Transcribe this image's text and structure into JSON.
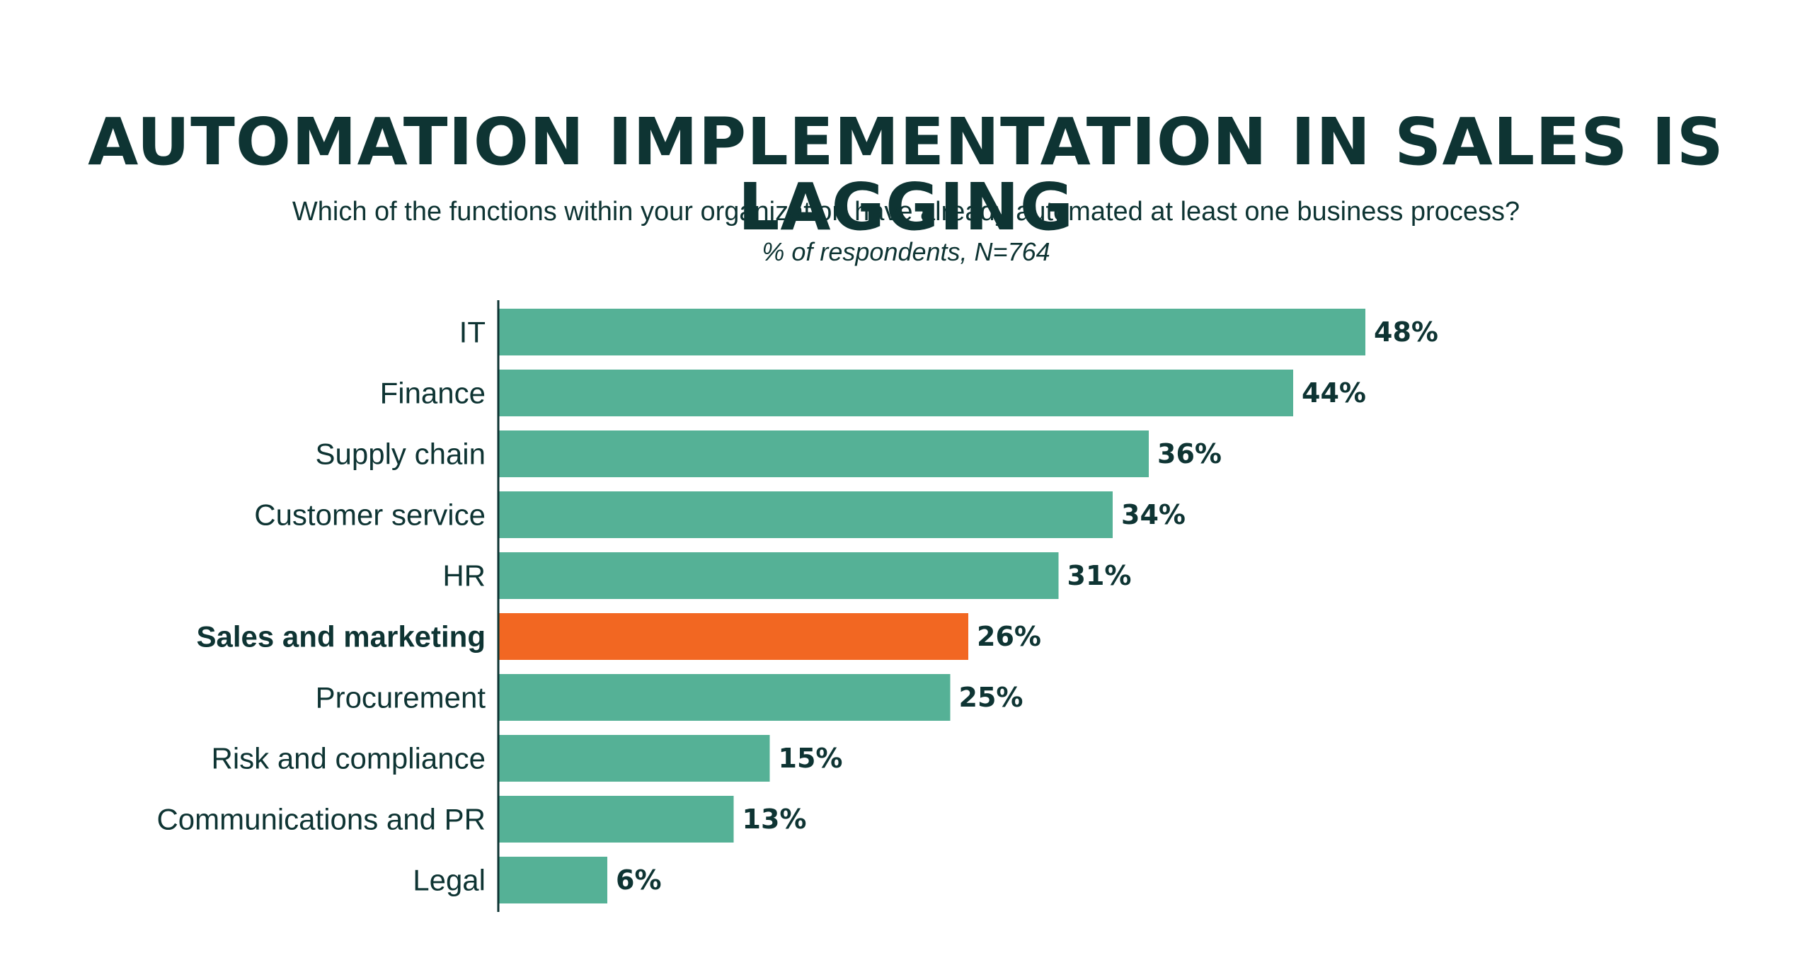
{
  "chart_data": {
    "type": "bar",
    "orientation": "horizontal",
    "title": "AUTOMATION IMPLEMENTATION IN SALES IS LAGGING",
    "subtitle": "Which of the functions within your organization have already automated at least one business process?",
    "note": "% of respondents, N=764",
    "categories": [
      "IT",
      "Finance",
      "Supply chain",
      "Customer service",
      "HR",
      "Sales and marketing",
      "Procurement",
      "Risk and compliance",
      "Communications and PR",
      "Legal"
    ],
    "values": [
      48,
      44,
      36,
      34,
      31,
      26,
      25,
      15,
      13,
      6
    ],
    "value_labels": [
      "48%",
      "44%",
      "36%",
      "34%",
      "31%",
      "26%",
      "25%",
      "15%",
      "13%",
      "6%"
    ],
    "highlight_category": "Sales and marketing",
    "colors": {
      "bar": "#55b196",
      "highlight": "#f26722",
      "text": "#0e3433",
      "axis": "#0e3433"
    },
    "xlim": [
      0,
      48
    ],
    "grid": false,
    "legend": "none"
  }
}
